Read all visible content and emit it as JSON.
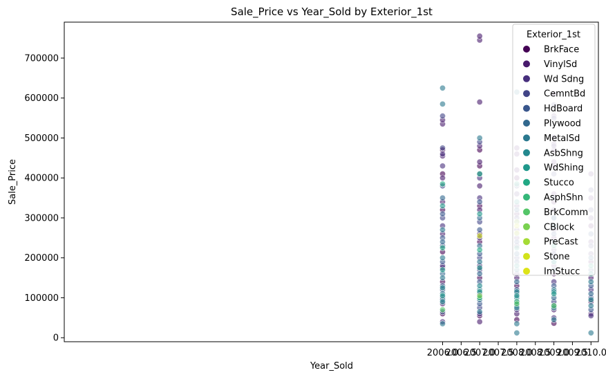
{
  "chart_data": {
    "type": "scatter",
    "title": "Sale_Price vs Year_Sold by Exterior_1st",
    "xlabel": "Year_Sold",
    "ylabel": "Sale_Price",
    "xlim": [
      1995.8,
      2010.2
    ],
    "ylim": [
      -10000,
      790000
    ],
    "xticks": [
      2006.0,
      2006.5,
      2007.0,
      2007.5,
      2008.0,
      2008.5,
      2009.0,
      2009.5,
      2010.0
    ],
    "xtick_labels": [
      "2006.0",
      "2006.5",
      "2007.0",
      "2007.5",
      "2008.0",
      "2008.5",
      "2009.0",
      "2009.5",
      "2010.0"
    ],
    "yticks": [
      0,
      100000,
      200000,
      300000,
      400000,
      500000,
      600000,
      700000
    ],
    "ytick_labels": [
      "0",
      "100000",
      "200000",
      "300000",
      "400000",
      "500000",
      "600000",
      "700000"
    ],
    "grid": false,
    "legend": {
      "title": "Exterior_1st",
      "placement": "top-right",
      "entries": [
        {
          "name": "BrkFace",
          "color": "#440154"
        },
        {
          "name": "VinylSd",
          "color": "#481a6c"
        },
        {
          "name": "Wd Sdng",
          "color": "#472f7d"
        },
        {
          "name": "CemntBd",
          "color": "#414487"
        },
        {
          "name": "HdBoard",
          "color": "#39568c"
        },
        {
          "name": "Plywood",
          "color": "#31688e"
        },
        {
          "name": "MetalSd",
          "color": "#2a788e"
        },
        {
          "name": "AsbShng",
          "color": "#23888e"
        },
        {
          "name": "WdShing",
          "color": "#1f988b"
        },
        {
          "name": "Stucco",
          "color": "#22a884"
        },
        {
          "name": "AsphShn",
          "color": "#35b779"
        },
        {
          "name": "BrkComm",
          "color": "#54c568"
        },
        {
          "name": "CBlock",
          "color": "#7ad151"
        },
        {
          "name": "PreCast",
          "color": "#a5db36"
        },
        {
          "name": "Stone",
          "color": "#d2e21b"
        },
        {
          "name": "ImStucc",
          "color": "#dde318"
        }
      ]
    },
    "series": [
      {
        "name": "BrkFace",
        "points": [
          [
            2006,
            60000
          ],
          [
            2006,
            140000
          ],
          [
            2006,
            215000
          ],
          [
            2006,
            320000
          ],
          [
            2006,
            410000
          ],
          [
            2006,
            470000
          ],
          [
            2007,
            55000
          ],
          [
            2007,
            150000
          ],
          [
            2007,
            240000
          ],
          [
            2007,
            330000
          ],
          [
            2007,
            430000
          ],
          [
            2007,
            470000
          ],
          [
            2008,
            45000
          ],
          [
            2008,
            130000
          ],
          [
            2008,
            230000
          ],
          [
            2008,
            310000
          ],
          [
            2008,
            400000
          ],
          [
            2009,
            36000
          ],
          [
            2009,
            160000
          ],
          [
            2009,
            250000
          ],
          [
            2009,
            340000
          ],
          [
            2009,
            430000
          ],
          [
            2010,
            90000
          ],
          [
            2010,
            190000
          ],
          [
            2010,
            280000
          ]
        ]
      },
      {
        "name": "VinylSd",
        "points": [
          [
            2006,
            85000
          ],
          [
            2006,
            175000
          ],
          [
            2006,
            260000
          ],
          [
            2006,
            340000
          ],
          [
            2006,
            400000
          ],
          [
            2006,
            455000
          ],
          [
            2006,
            535000
          ],
          [
            2006,
            545000
          ],
          [
            2007,
            40000
          ],
          [
            2007,
            110000
          ],
          [
            2007,
            180000
          ],
          [
            2007,
            260000
          ],
          [
            2007,
            320000
          ],
          [
            2007,
            380000
          ],
          [
            2007,
            440000
          ],
          [
            2007,
            480000
          ],
          [
            2007,
            590000
          ],
          [
            2007,
            745000
          ],
          [
            2007,
            755000
          ],
          [
            2008,
            60000
          ],
          [
            2008,
            150000
          ],
          [
            2008,
            250000
          ],
          [
            2008,
            330000
          ],
          [
            2008,
            420000
          ],
          [
            2008,
            460000
          ],
          [
            2008,
            475000
          ],
          [
            2009,
            70000
          ],
          [
            2009,
            180000
          ],
          [
            2009,
            270000
          ],
          [
            2009,
            360000
          ],
          [
            2009,
            440000
          ],
          [
            2009,
            470000
          ],
          [
            2009,
            485000
          ],
          [
            2009,
            555000
          ],
          [
            2009,
            610000
          ],
          [
            2010,
            60000
          ],
          [
            2010,
            150000
          ],
          [
            2010,
            240000
          ],
          [
            2010,
            350000
          ],
          [
            2010,
            410000
          ]
        ]
      },
      {
        "name": "Wd Sdng",
        "points": [
          [
            2006,
            40000
          ],
          [
            2006,
            100000
          ],
          [
            2006,
            180000
          ],
          [
            2006,
            280000
          ],
          [
            2006,
            430000
          ],
          [
            2006,
            460000
          ],
          [
            2007,
            60000
          ],
          [
            2007,
            170000
          ],
          [
            2007,
            250000
          ],
          [
            2007,
            350000
          ],
          [
            2007,
            400000
          ],
          [
            2008,
            70000
          ],
          [
            2008,
            160000
          ],
          [
            2008,
            270000
          ],
          [
            2008,
            360000
          ],
          [
            2009,
            50000
          ],
          [
            2009,
            140000
          ],
          [
            2009,
            220000
          ],
          [
            2009,
            320000
          ],
          [
            2009,
            480000
          ],
          [
            2009,
            502000
          ],
          [
            2010,
            55000
          ],
          [
            2010,
            120000
          ],
          [
            2010,
            210000
          ],
          [
            2010,
            300000
          ]
        ]
      },
      {
        "name": "CemntBd",
        "points": [
          [
            2006,
            120000
          ],
          [
            2006,
            230000
          ],
          [
            2006,
            300000
          ],
          [
            2006,
            380000
          ],
          [
            2006,
            475000
          ],
          [
            2006,
            555000
          ],
          [
            2007,
            75000
          ],
          [
            2007,
            200000
          ],
          [
            2007,
            290000
          ],
          [
            2007,
            410000
          ],
          [
            2007,
            490000
          ],
          [
            2008,
            110000
          ],
          [
            2008,
            200000
          ],
          [
            2008,
            300000
          ],
          [
            2008,
            380000
          ],
          [
            2009,
            90000
          ],
          [
            2009,
            210000
          ],
          [
            2009,
            300000
          ],
          [
            2009,
            410000
          ],
          [
            2009,
            550000
          ],
          [
            2009,
            583000
          ],
          [
            2010,
            100000
          ],
          [
            2010,
            230000
          ],
          [
            2010,
            320000
          ],
          [
            2010,
            370000
          ]
        ]
      },
      {
        "name": "HdBoard",
        "points": [
          [
            2006,
            65000
          ],
          [
            2006,
            130000
          ],
          [
            2006,
            190000
          ],
          [
            2006,
            250000
          ],
          [
            2006,
            310000
          ],
          [
            2007,
            85000
          ],
          [
            2007,
            140000
          ],
          [
            2007,
            210000
          ],
          [
            2007,
            270000
          ],
          [
            2007,
            340000
          ],
          [
            2008,
            80000
          ],
          [
            2008,
            120000
          ],
          [
            2008,
            190000
          ],
          [
            2008,
            240000
          ],
          [
            2008,
            290000
          ],
          [
            2009,
            80000
          ],
          [
            2009,
            130000
          ],
          [
            2009,
            200000
          ],
          [
            2009,
            260000
          ],
          [
            2009,
            350000
          ],
          [
            2010,
            70000
          ],
          [
            2010,
            130000
          ],
          [
            2010,
            170000
          ],
          [
            2010,
            260000
          ]
        ]
      },
      {
        "name": "Plywood",
        "points": [
          [
            2006,
            95000
          ],
          [
            2006,
            160000
          ],
          [
            2006,
            240000
          ],
          [
            2006,
            350000
          ],
          [
            2007,
            95000
          ],
          [
            2007,
            160000
          ],
          [
            2007,
            230000
          ],
          [
            2007,
            300000
          ],
          [
            2008,
            90000
          ],
          [
            2008,
            140000
          ],
          [
            2008,
            210000
          ],
          [
            2008,
            320000
          ],
          [
            2009,
            100000
          ],
          [
            2009,
            170000
          ],
          [
            2009,
            240000
          ],
          [
            2009,
            300000
          ],
          [
            2010,
            110000
          ],
          [
            2010,
            200000
          ]
        ]
      },
      {
        "name": "MetalSd",
        "points": [
          [
            2006,
            35000
          ],
          [
            2006,
            110000
          ],
          [
            2006,
            150000
          ],
          [
            2006,
            200000
          ],
          [
            2006,
            270000
          ],
          [
            2006,
            585000
          ],
          [
            2006,
            625000
          ],
          [
            2007,
            65000
          ],
          [
            2007,
            120000
          ],
          [
            2007,
            190000
          ],
          [
            2007,
            500000
          ],
          [
            2008,
            12000
          ],
          [
            2008,
            35000
          ],
          [
            2008,
            100000
          ],
          [
            2008,
            170000
          ],
          [
            2008,
            260000
          ],
          [
            2008,
            615000
          ],
          [
            2009,
            45000
          ],
          [
            2009,
            120000
          ],
          [
            2009,
            190000
          ],
          [
            2009,
            280000
          ],
          [
            2010,
            12000
          ],
          [
            2010,
            80000
          ],
          [
            2010,
            140000
          ]
        ]
      },
      {
        "name": "AsbShng",
        "points": [
          [
            2006,
            90000
          ],
          [
            2006,
            125000
          ],
          [
            2007,
            100000
          ],
          [
            2007,
            130000
          ],
          [
            2008,
            75000
          ],
          [
            2008,
            115000
          ],
          [
            2009,
            75000
          ],
          [
            2009,
            115000
          ],
          [
            2010,
            95000
          ]
        ]
      },
      {
        "name": "WdShing",
        "points": [
          [
            2006,
            105000
          ],
          [
            2006,
            170000
          ],
          [
            2006,
            330000
          ],
          [
            2007,
            115000
          ],
          [
            2007,
            175000
          ],
          [
            2007,
            310000
          ],
          [
            2008,
            105000
          ],
          [
            2008,
            180000
          ],
          [
            2008,
            340000
          ],
          [
            2009,
            110000
          ],
          [
            2009,
            190000
          ],
          [
            2010,
            160000
          ]
        ]
      },
      {
        "name": "Stucco",
        "points": [
          [
            2006,
            225000
          ],
          [
            2006,
            385000
          ],
          [
            2007,
            220000
          ],
          [
            2007,
            410000
          ],
          [
            2008,
            225000
          ],
          [
            2008,
            385000
          ],
          [
            2009,
            230000
          ],
          [
            2010,
            180000
          ]
        ]
      },
      {
        "name": "AsphShn",
        "points": [
          [
            2007,
            100000
          ],
          [
            2008,
            90000
          ]
        ]
      },
      {
        "name": "BrkComm",
        "points": [
          [
            2006,
            70000
          ],
          [
            2008,
            85000
          ],
          [
            2009,
            80000
          ]
        ]
      },
      {
        "name": "CBlock",
        "points": [
          [
            2007,
            105000
          ]
        ]
      },
      {
        "name": "PreCast",
        "points": [
          [
            2008,
            290000
          ]
        ]
      },
      {
        "name": "Stone",
        "points": [
          [
            2007,
            255000
          ],
          [
            2008,
            280000
          ]
        ]
      },
      {
        "name": "ImStucc",
        "points": [
          [
            2008,
            262000
          ]
        ]
      }
    ]
  }
}
